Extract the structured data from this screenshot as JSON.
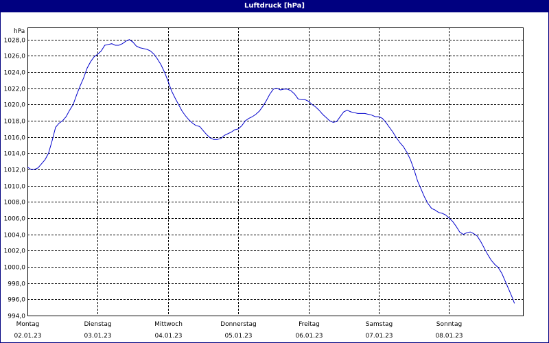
{
  "window": {
    "title": "Luftdruck [hPa]"
  },
  "chart_data": {
    "type": "line",
    "title": "Luftdruck [hPa]",
    "ylabel": "hPa",
    "xlabel": "",
    "ylim": [
      994,
      1029.5
    ],
    "xlim": [
      0,
      7.05
    ],
    "grid": true,
    "y_ticks": [
      "994,0",
      "996,0",
      "998,0",
      "1000,0",
      "1002,0",
      "1004,0",
      "1006,0",
      "1008,0",
      "1010,0",
      "1012,0",
      "1014,0",
      "1016,0",
      "1018,0",
      "1020,0",
      "1022,0",
      "1024,0",
      "1026,0",
      "1028,0"
    ],
    "x_ticks": [
      {
        "day": "Montag",
        "date": "02.01.23"
      },
      {
        "day": "Dienstag",
        "date": "03.01.23"
      },
      {
        "day": "Mittwoch",
        "date": "04.01.23"
      },
      {
        "day": "Donnerstag",
        "date": "05.01.23"
      },
      {
        "day": "Freitag",
        "date": "06.01.23"
      },
      {
        "day": "Samstag",
        "date": "07.01.23"
      },
      {
        "day": "Sonntag",
        "date": "08.01.23"
      }
    ],
    "line_color": "#0000cc",
    "series": [
      {
        "values": [
          [
            0.0,
            1012.3
          ],
          [
            0.05,
            1012.0
          ],
          [
            0.1,
            1012.0
          ],
          [
            0.15,
            1012.2
          ],
          [
            0.2,
            1012.7
          ],
          [
            0.25,
            1013.2
          ],
          [
            0.3,
            1014.0
          ],
          [
            0.35,
            1015.5
          ],
          [
            0.4,
            1017.2
          ],
          [
            0.45,
            1017.7
          ],
          [
            0.5,
            1018.0
          ],
          [
            0.55,
            1018.5
          ],
          [
            0.6,
            1019.3
          ],
          [
            0.65,
            1020.0
          ],
          [
            0.7,
            1021.2
          ],
          [
            0.75,
            1022.3
          ],
          [
            0.8,
            1023.3
          ],
          [
            0.85,
            1024.5
          ],
          [
            0.9,
            1025.3
          ],
          [
            0.95,
            1025.9
          ],
          [
            1.0,
            1026.2
          ],
          [
            1.05,
            1026.6
          ],
          [
            1.1,
            1027.3
          ],
          [
            1.15,
            1027.4
          ],
          [
            1.2,
            1027.5
          ],
          [
            1.25,
            1027.3
          ],
          [
            1.3,
            1027.3
          ],
          [
            1.35,
            1027.5
          ],
          [
            1.4,
            1027.8
          ],
          [
            1.45,
            1028.0
          ],
          [
            1.5,
            1027.7
          ],
          [
            1.55,
            1027.2
          ],
          [
            1.6,
            1027.0
          ],
          [
            1.65,
            1026.9
          ],
          [
            1.7,
            1026.8
          ],
          [
            1.75,
            1026.6
          ],
          [
            1.8,
            1026.2
          ],
          [
            1.85,
            1025.6
          ],
          [
            1.9,
            1024.9
          ],
          [
            1.95,
            1024.0
          ],
          [
            2.0,
            1022.9
          ],
          [
            2.05,
            1021.7
          ],
          [
            2.1,
            1020.8
          ],
          [
            2.15,
            1020.0
          ],
          [
            2.2,
            1019.2
          ],
          [
            2.25,
            1018.6
          ],
          [
            2.3,
            1018.1
          ],
          [
            2.35,
            1017.7
          ],
          [
            2.4,
            1017.4
          ],
          [
            2.45,
            1017.3
          ],
          [
            2.5,
            1016.8
          ],
          [
            2.55,
            1016.3
          ],
          [
            2.6,
            1015.9
          ],
          [
            2.65,
            1015.7
          ],
          [
            2.7,
            1015.7
          ],
          [
            2.75,
            1015.8
          ],
          [
            2.8,
            1016.2
          ],
          [
            2.85,
            1016.4
          ],
          [
            2.9,
            1016.6
          ],
          [
            2.95,
            1016.9
          ],
          [
            3.0,
            1017.0
          ],
          [
            3.05,
            1017.4
          ],
          [
            3.1,
            1018.0
          ],
          [
            3.15,
            1018.3
          ],
          [
            3.2,
            1018.5
          ],
          [
            3.25,
            1018.8
          ],
          [
            3.3,
            1019.2
          ],
          [
            3.35,
            1019.8
          ],
          [
            3.4,
            1020.5
          ],
          [
            3.45,
            1021.3
          ],
          [
            3.5,
            1021.9
          ],
          [
            3.55,
            1022.0
          ],
          [
            3.6,
            1021.8
          ],
          [
            3.65,
            1021.9
          ],
          [
            3.7,
            1021.9
          ],
          [
            3.75,
            1021.7
          ],
          [
            3.8,
            1021.3
          ],
          [
            3.85,
            1020.7
          ],
          [
            3.9,
            1020.6
          ],
          [
            3.95,
            1020.6
          ],
          [
            4.0,
            1020.4
          ],
          [
            4.05,
            1020.0
          ],
          [
            4.1,
            1019.7
          ],
          [
            4.15,
            1019.3
          ],
          [
            4.2,
            1018.8
          ],
          [
            4.25,
            1018.4
          ],
          [
            4.3,
            1018.0
          ],
          [
            4.35,
            1017.8
          ],
          [
            4.4,
            1017.9
          ],
          [
            4.45,
            1018.5
          ],
          [
            4.5,
            1019.1
          ],
          [
            4.55,
            1019.3
          ],
          [
            4.6,
            1019.1
          ],
          [
            4.65,
            1019.0
          ],
          [
            4.7,
            1018.9
          ],
          [
            4.75,
            1018.9
          ],
          [
            4.8,
            1018.9
          ],
          [
            4.85,
            1018.8
          ],
          [
            4.9,
            1018.7
          ],
          [
            4.95,
            1018.5
          ],
          [
            5.0,
            1018.5
          ],
          [
            5.05,
            1018.3
          ],
          [
            5.1,
            1017.8
          ],
          [
            5.15,
            1017.2
          ],
          [
            5.2,
            1016.6
          ],
          [
            5.25,
            1015.9
          ],
          [
            5.3,
            1015.3
          ],
          [
            5.35,
            1014.8
          ],
          [
            5.4,
            1014.1
          ],
          [
            5.45,
            1013.2
          ],
          [
            5.5,
            1012.0
          ],
          [
            5.55,
            1010.6
          ],
          [
            5.6,
            1009.6
          ],
          [
            5.65,
            1008.6
          ],
          [
            5.7,
            1007.8
          ],
          [
            5.75,
            1007.2
          ],
          [
            5.8,
            1007.0
          ],
          [
            5.85,
            1006.7
          ],
          [
            5.9,
            1006.6
          ],
          [
            5.95,
            1006.4
          ],
          [
            6.0,
            1006.0
          ],
          [
            6.05,
            1005.6
          ],
          [
            6.1,
            1005.0
          ],
          [
            6.15,
            1004.3
          ],
          [
            6.2,
            1004.0
          ],
          [
            6.25,
            1004.2
          ],
          [
            6.3,
            1004.3
          ],
          [
            6.35,
            1004.1
          ],
          [
            6.4,
            1003.8
          ],
          [
            6.45,
            1003.1
          ],
          [
            6.5,
            1002.3
          ],
          [
            6.55,
            1001.5
          ],
          [
            6.6,
            1000.8
          ],
          [
            6.65,
            1000.3
          ],
          [
            6.7,
            999.9
          ],
          [
            6.75,
            999.2
          ],
          [
            6.8,
            998.2
          ],
          [
            6.85,
            997.2
          ],
          [
            6.9,
            996.2
          ],
          [
            6.93,
            995.5
          ]
        ]
      }
    ]
  }
}
